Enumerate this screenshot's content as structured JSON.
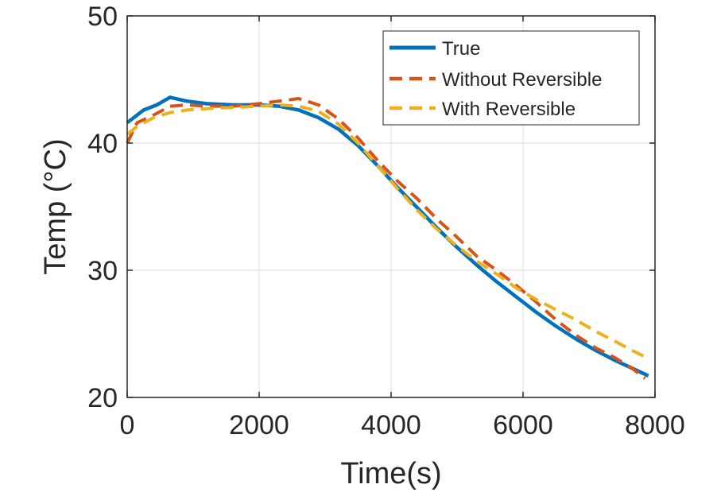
{
  "chart_data": {
    "type": "line",
    "title": "",
    "xlabel": "Time(s)",
    "ylabel": "Temp (°C)",
    "xlim": [
      0,
      8000
    ],
    "ylim": [
      20,
      50
    ],
    "xticks": [
      0,
      2000,
      4000,
      6000,
      8000
    ],
    "yticks": [
      20,
      30,
      40,
      50
    ],
    "xtick_labels": [
      "0",
      "2000",
      "4000",
      "6000",
      "8000"
    ],
    "ytick_labels": [
      "20",
      "30",
      "40",
      "50"
    ],
    "grid": true,
    "legend_position": "top-right",
    "series": [
      {
        "name": "True",
        "color": "#0072bd",
        "style": "solid",
        "points": [
          [
            0,
            41.6
          ],
          [
            250,
            42.6
          ],
          [
            450,
            43.0
          ],
          [
            650,
            43.6
          ],
          [
            900,
            43.3
          ],
          [
            1200,
            43.1
          ],
          [
            1600,
            43.0
          ],
          [
            2000,
            43.0
          ],
          [
            2300,
            42.9
          ],
          [
            2600,
            42.6
          ],
          [
            2900,
            42.0
          ],
          [
            3200,
            41.1
          ],
          [
            3500,
            39.8
          ],
          [
            3800,
            38.2
          ],
          [
            4100,
            36.5
          ],
          [
            4400,
            34.9
          ],
          [
            4700,
            33.3
          ],
          [
            5000,
            31.8
          ],
          [
            5300,
            30.4
          ],
          [
            5600,
            29.1
          ],
          [
            5900,
            27.9
          ],
          [
            6200,
            26.7
          ],
          [
            6500,
            25.6
          ],
          [
            6800,
            24.6
          ],
          [
            7100,
            23.7
          ],
          [
            7400,
            22.9
          ],
          [
            7650,
            22.3
          ],
          [
            7900,
            21.7
          ]
        ]
      },
      {
        "name": "Without Reversible",
        "color": "#d95319",
        "style": "dashed",
        "points": [
          [
            0,
            40.0
          ],
          [
            150,
            41.6
          ],
          [
            400,
            42.2
          ],
          [
            650,
            42.9
          ],
          [
            900,
            43.0
          ],
          [
            1200,
            42.9
          ],
          [
            1600,
            42.9
          ],
          [
            2000,
            43.1
          ],
          [
            2300,
            43.3
          ],
          [
            2600,
            43.5
          ],
          [
            2900,
            43.0
          ],
          [
            3200,
            41.9
          ],
          [
            3500,
            40.4
          ],
          [
            3800,
            38.6
          ],
          [
            4100,
            37.0
          ],
          [
            4400,
            35.6
          ],
          [
            4700,
            34.0
          ],
          [
            5000,
            32.6
          ],
          [
            5300,
            31.1
          ],
          [
            5600,
            30.0
          ],
          [
            5900,
            28.8
          ],
          [
            6200,
            27.5
          ],
          [
            6500,
            26.1
          ],
          [
            6800,
            24.9
          ],
          [
            7100,
            23.9
          ],
          [
            7400,
            23.1
          ],
          [
            7650,
            22.3
          ],
          [
            7850,
            21.5
          ]
        ]
      },
      {
        "name": "With Reversible",
        "color": "#edb120",
        "style": "dashed",
        "points": [
          [
            0,
            40.7
          ],
          [
            150,
            41.3
          ],
          [
            400,
            42.0
          ],
          [
            650,
            42.4
          ],
          [
            900,
            42.6
          ],
          [
            1200,
            42.7
          ],
          [
            1600,
            42.8
          ],
          [
            2000,
            42.9
          ],
          [
            2300,
            43.0
          ],
          [
            2600,
            42.9
          ],
          [
            2900,
            42.5
          ],
          [
            3200,
            41.5
          ],
          [
            3500,
            40.0
          ],
          [
            3800,
            38.2
          ],
          [
            4100,
            36.4
          ],
          [
            4400,
            34.7
          ],
          [
            4700,
            33.2
          ],
          [
            5000,
            31.9
          ],
          [
            5300,
            30.7
          ],
          [
            5600,
            29.7
          ],
          [
            5900,
            28.6
          ],
          [
            6200,
            27.7
          ],
          [
            6500,
            26.9
          ],
          [
            6800,
            26.1
          ],
          [
            7100,
            25.2
          ],
          [
            7400,
            24.4
          ],
          [
            7650,
            23.7
          ],
          [
            7850,
            23.2
          ]
        ]
      }
    ]
  }
}
